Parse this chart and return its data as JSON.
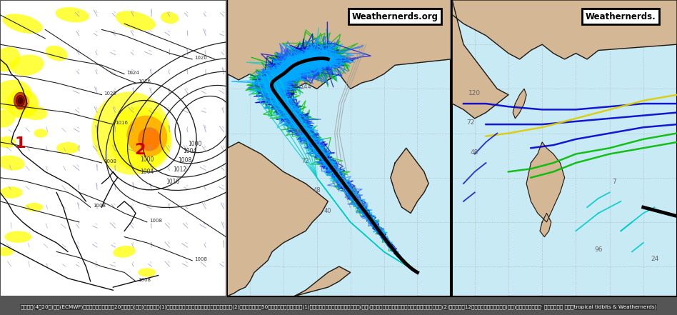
{
  "figure_width": 9.48,
  "figure_height": 4.41,
  "dpi": 100,
  "panel1_bg": "#ffffff",
  "panel2_bg": "#c8eaf5",
  "panel3_bg": "#c8eaf5",
  "land_color": "#d4b896",
  "land_border": "#1a1a1a",
  "yellow_fill": "#ffff00",
  "orange_fill": "#ff8800",
  "red_fill": "#cc2200",
  "dark_red": "#881100",
  "isobar_color": "#222222",
  "wind_color": "#8888bb",
  "label1_color": "#cc0000",
  "label2_color": "#cc0000",
  "track_black_lw": 3.5,
  "track_blue_dark": "#0000cc",
  "track_blue_med": "#2255ff",
  "track_blue_light": "#4499ff",
  "track_green": "#00bb00",
  "track_cyan": "#00cccc",
  "track_yellow": "#ddcc00",
  "track_gray": "#888888",
  "grid_color": "#aaaaaa",
  "title2": "Weathernerds.org",
  "title3": "Weathernerds.",
  "caption": "圖：最新(4日20時)歐洲(ECMWF)模式，模擬「國慶日」20時預測圖(左圖)顯示，擾動(1)已通過海南島附近，菲律賓東方海面另有一擾動(2)。歐洲系集模式50次的模擬路徑顯示，擾動(1)進入南海，與台灣相對距離或近或遠(中圖)，但「國慶日」已通過海南島。而菲律賓東方的擾動(2)最快也要到12日才有機率接近台灣附近(右圖)。（「三立準氣象· 老大洩天機」 圖擷自tropical tidbits & Weathernerds)"
}
